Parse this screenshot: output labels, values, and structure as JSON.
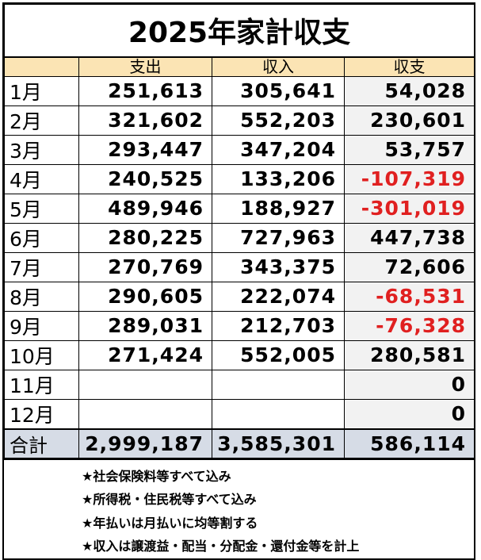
{
  "title": "2025年家計収支",
  "headers": {
    "month": "",
    "expense": "支出",
    "income": "収入",
    "balance": "収支"
  },
  "rows": [
    {
      "month": "1月",
      "expense": "251,613",
      "income": "305,641",
      "balance": "54,028",
      "negative": false
    },
    {
      "month": "2月",
      "expense": "321,602",
      "income": "552,203",
      "balance": "230,601",
      "negative": false
    },
    {
      "month": "3月",
      "expense": "293,447",
      "income": "347,204",
      "balance": "53,757",
      "negative": false
    },
    {
      "month": "4月",
      "expense": "240,525",
      "income": "133,206",
      "balance": "-107,319",
      "negative": true
    },
    {
      "month": "5月",
      "expense": "489,946",
      "income": "188,927",
      "balance": "-301,019",
      "negative": true
    },
    {
      "month": "6月",
      "expense": "280,225",
      "income": "727,963",
      "balance": "447,738",
      "negative": false
    },
    {
      "month": "7月",
      "expense": "270,769",
      "income": "343,375",
      "balance": "72,606",
      "negative": false
    },
    {
      "month": "8月",
      "expense": "290,605",
      "income": "222,074",
      "balance": "-68,531",
      "negative": true
    },
    {
      "month": "9月",
      "expense": "289,031",
      "income": "212,703",
      "balance": "-76,328",
      "negative": true
    },
    {
      "month": "10月",
      "expense": "271,424",
      "income": "552,005",
      "balance": "280,581",
      "negative": false
    },
    {
      "month": "11月",
      "expense": "",
      "income": "",
      "balance": "0",
      "negative": false
    },
    {
      "month": "12月",
      "expense": "",
      "income": "",
      "balance": "0",
      "negative": false
    }
  ],
  "total": {
    "label": "合計",
    "expense": "2,999,187",
    "income": "3,585,301",
    "balance": "586,114"
  },
  "notes": [
    "★社会保険料等すべて込み",
    "★所得税・住民税等すべて込み",
    "★年払いは月払いに均等割する",
    "★収入は譲渡益・配当・分配金・還付金等を計上"
  ],
  "colors": {
    "header_bg": "#fbe4b4",
    "balance_bg": "#f2f2f2",
    "total_bg": "#d6dce6",
    "negative_text": "#e02020"
  }
}
